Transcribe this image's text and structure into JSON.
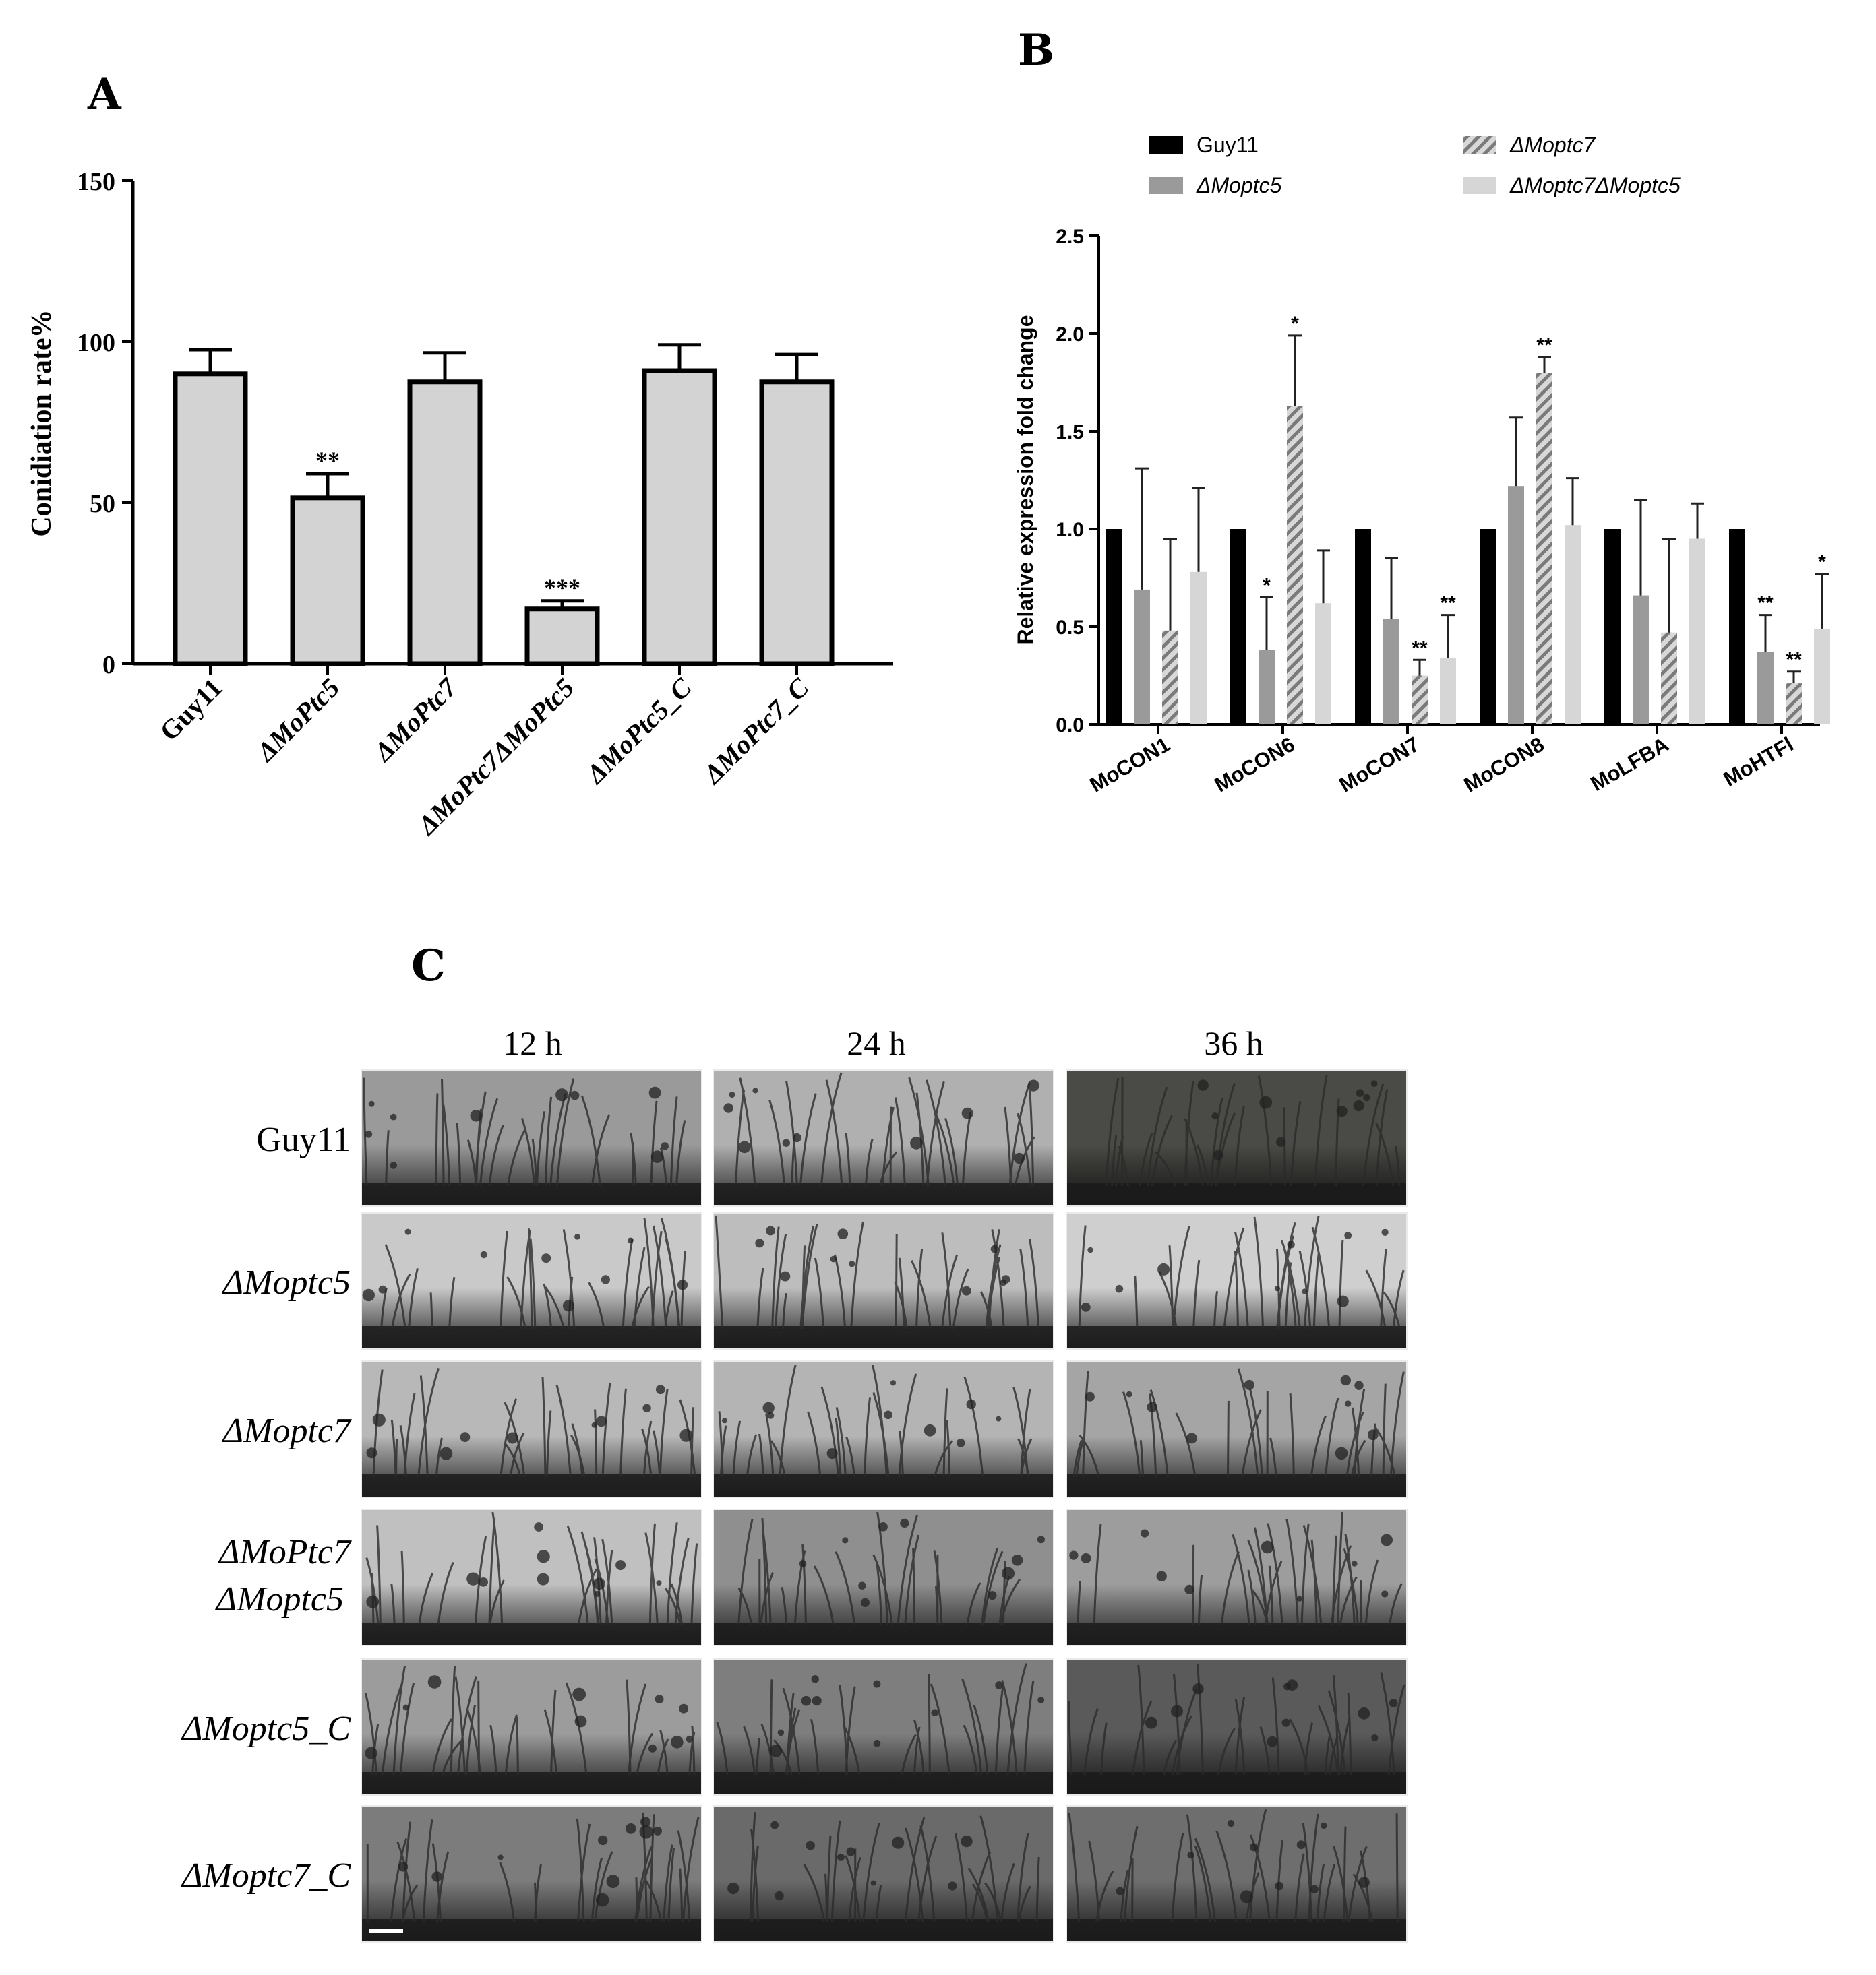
{
  "colors": {
    "bar_gray": "#d3d3d3",
    "black": "#000000",
    "mid_gray": "#9a9a9a",
    "light_gray": "#d6d6d6",
    "hatch_gray": "#888888"
  },
  "chart_data": [
    {
      "panel": "A",
      "type": "bar",
      "ylabel": "Conidiation rate%",
      "ylim": [
        0,
        150
      ],
      "yticks": [
        "0",
        "50",
        "100",
        "150"
      ],
      "categories": [
        "Guy11",
        "ΔMoPtc5",
        "ΔMoPtc7",
        "ΔMoPtc7ΔMoPtc5",
        "ΔMoPtc5_C",
        "ΔMoPtc7_C"
      ],
      "values": [
        90,
        51.5,
        87.5,
        17,
        91,
        87.5
      ],
      "errors": [
        7.5,
        7.5,
        9,
        2.5,
        8,
        8.5
      ],
      "significance": [
        "",
        "**",
        "",
        "***",
        "",
        ""
      ]
    },
    {
      "panel": "B",
      "type": "bar",
      "ylabel": "Relative expression fold change",
      "ylim": [
        0,
        2.5
      ],
      "yticks": [
        "0.0",
        "0.5",
        "1.0",
        "1.5",
        "2.0",
        "2.5"
      ],
      "categories": [
        "MoCON1",
        "MoCON6",
        "MoCON7",
        "MoCON8",
        "MoLFBA",
        "MoHTFl"
      ],
      "series": [
        {
          "name": "Guy11",
          "style": "black",
          "values": [
            1.0,
            1.0,
            1.0,
            1.0,
            1.0,
            1.0
          ],
          "errors": [
            0,
            0,
            0,
            0,
            0,
            0
          ],
          "significance": [
            "",
            "",
            "",
            "",
            "",
            ""
          ]
        },
        {
          "name": "ΔMoptc5",
          "style": "mid",
          "values": [
            0.69,
            0.38,
            0.54,
            1.22,
            0.66,
            0.37
          ],
          "errors": [
            0.62,
            0.27,
            0.31,
            0.35,
            0.49,
            0.19
          ],
          "significance": [
            "",
            "*",
            "",
            "",
            "",
            "**"
          ]
        },
        {
          "name": "ΔMoptc7",
          "style": "hatch",
          "values": [
            0.48,
            1.63,
            0.25,
            1.8,
            0.47,
            0.21
          ],
          "errors": [
            0.47,
            0.36,
            0.08,
            0.08,
            0.48,
            0.06
          ],
          "significance": [
            "",
            "*",
            "**",
            "**",
            "",
            "**"
          ]
        },
        {
          "name": "ΔMoptc7ΔMoptc5",
          "style": "light",
          "values": [
            0.78,
            0.62,
            0.34,
            1.02,
            0.95,
            0.49
          ],
          "errors": [
            0.43,
            0.27,
            0.22,
            0.24,
            0.18,
            0.28
          ],
          "significance": [
            "",
            "",
            "**",
            "",
            "",
            "*"
          ]
        }
      ]
    }
  ],
  "panels": {
    "a_letter": "A",
    "b_letter": "B",
    "c_letter": "C"
  },
  "micrographs": {
    "columns": [
      "12 h",
      "24 h",
      "36 h"
    ],
    "rows": [
      {
        "label": "Guy11",
        "italic": false
      },
      {
        "label": "ΔMoptc5",
        "italic": true
      },
      {
        "label": "ΔMoptc7",
        "italic": true
      },
      {
        "label": "ΔMoPtc7",
        "label2": "ΔMoptc5",
        "italic": true
      },
      {
        "label": "ΔMoptc5_C",
        "italic": true
      },
      {
        "label": "ΔMoptc7_C",
        "italic": true
      }
    ],
    "tones": [
      [
        "#9a9a9a",
        "#b0b0b0",
        "#4a4a46"
      ],
      [
        "#c9c9c9",
        "#bdbdbd",
        "#cfcfcf"
      ],
      [
        "#b8b8b8",
        "#b4b4b4",
        "#a5a5a5"
      ],
      [
        "#c0c0c0",
        "#8f8f8f",
        "#9d9d9d"
      ],
      [
        "#9c9c9c",
        "#7e7e7e",
        "#5a5a5a"
      ],
      [
        "#7c7c7c",
        "#6a6a6a",
        "#6e6e6e"
      ]
    ]
  }
}
